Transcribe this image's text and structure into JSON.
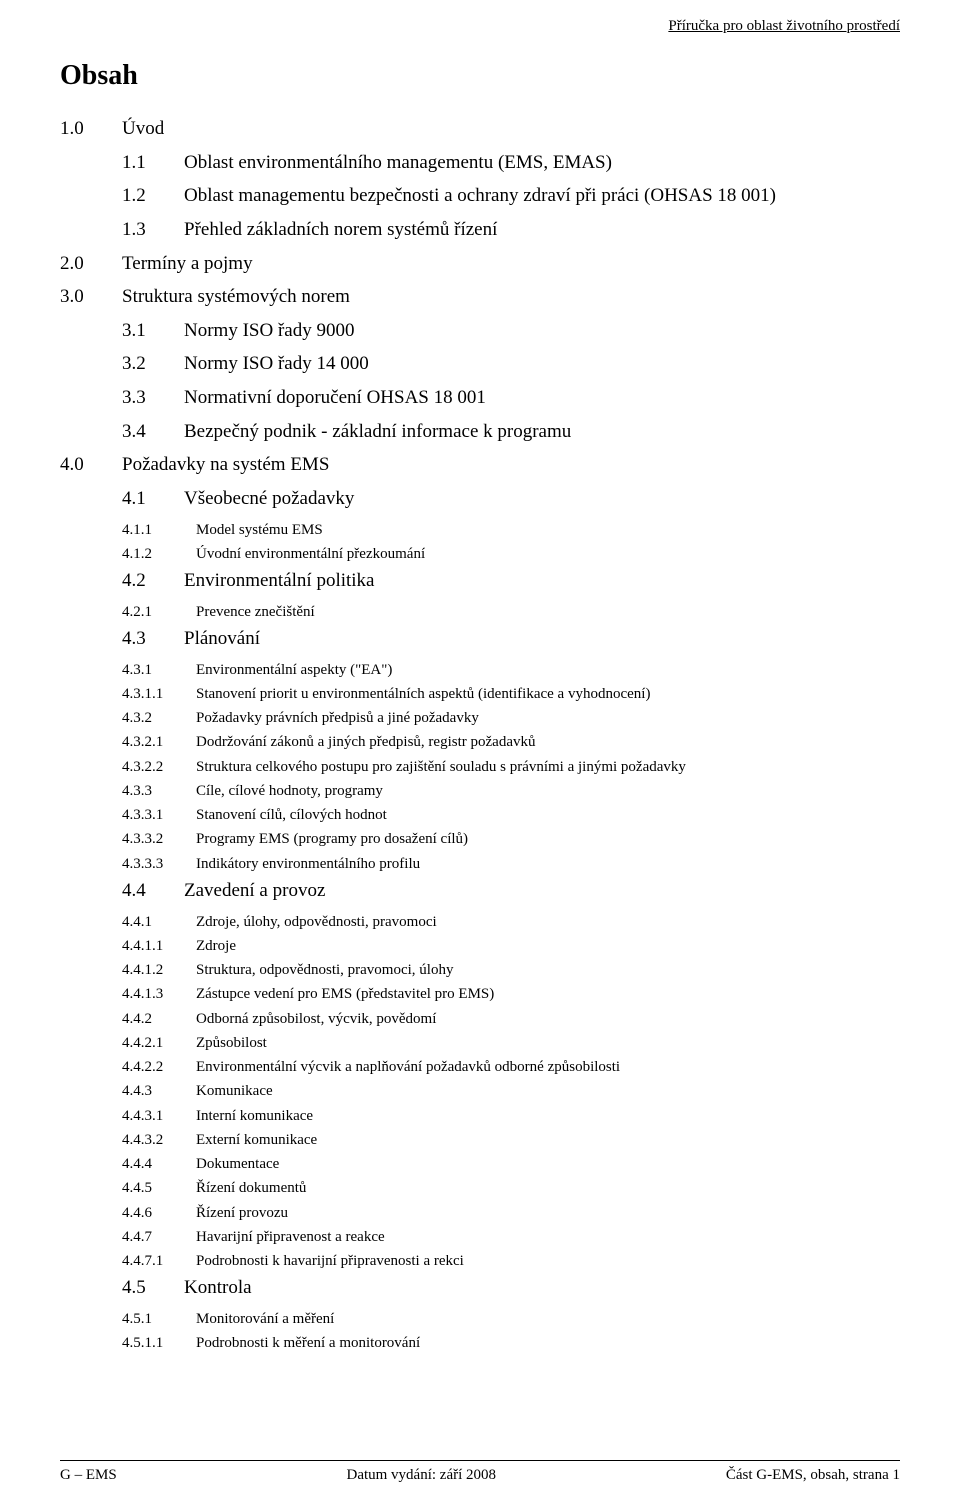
{
  "header_right": "Příručka pro oblast životního prostředí",
  "title": "Obsah",
  "entries": [
    {
      "lvl": 1,
      "num": "1.0",
      "txt": "Úvod"
    },
    {
      "lvl": 2,
      "num": "1.1",
      "txt": "Oblast environmentálního managementu (EMS, EMAS)"
    },
    {
      "lvl": 2,
      "num": "1.2",
      "txt": "Oblast managementu bezpečnosti a ochrany zdraví při práci (OHSAS 18 001)"
    },
    {
      "lvl": 2,
      "num": "1.3",
      "txt": "Přehled základních norem systémů řízení"
    },
    {
      "lvl": 1,
      "num": "2.0",
      "txt": "Termíny a pojmy"
    },
    {
      "lvl": 1,
      "num": "3.0",
      "txt": "Struktura systémových norem"
    },
    {
      "lvl": 2,
      "num": "3.1",
      "txt": "Normy ISO řady 9000"
    },
    {
      "lvl": 2,
      "num": "3.2",
      "txt": "Normy ISO řady 14 000"
    },
    {
      "lvl": 2,
      "num": "3.3",
      "txt": "Normativní doporučení OHSAS 18 001"
    },
    {
      "lvl": 2,
      "num": "3.4",
      "txt": "Bezpečný podnik - základní informace k programu"
    },
    {
      "lvl": 1,
      "num": "4.0",
      "txt": "Požadavky na systém EMS"
    },
    {
      "lvl": 2,
      "num": "4.1",
      "txt": "Všeobecné požadavky"
    },
    {
      "lvl": 3,
      "num": "4.1.1",
      "txt": "Model systému EMS"
    },
    {
      "lvl": 3,
      "num": "4.1.2",
      "txt": "Úvodní environmentální přezkoumání"
    },
    {
      "lvl": 2,
      "num": "4.2",
      "txt": "Environmentální politika"
    },
    {
      "lvl": 3,
      "num": "4.2.1",
      "txt": "Prevence znečištění"
    },
    {
      "lvl": 2,
      "num": "4.3",
      "txt": "Plánování"
    },
    {
      "lvl": 3,
      "num": "4.3.1",
      "txt": "Environmentální aspekty (\"EA\")"
    },
    {
      "lvl": 3,
      "num": "4.3.1.1",
      "txt": "Stanovení priorit u environmentálních aspektů (identifikace a vyhodnocení)"
    },
    {
      "lvl": 3,
      "num": "4.3.2",
      "txt": "Požadavky právních předpisů a jiné požadavky"
    },
    {
      "lvl": 3,
      "num": "4.3.2.1",
      "txt": "Dodržování zákonů a jiných předpisů, registr požadavků"
    },
    {
      "lvl": 3,
      "num": "4.3.2.2",
      "txt": "Struktura celkového postupu pro zajištění souladu s právními a jinými požadavky"
    },
    {
      "lvl": 3,
      "num": "4.3.3",
      "txt": "Cíle, cílové hodnoty, programy"
    },
    {
      "lvl": 3,
      "num": "4.3.3.1",
      "txt": "Stanovení cílů, cílových hodnot"
    },
    {
      "lvl": 3,
      "num": "4.3.3.2",
      "txt": "Programy EMS (programy pro dosažení cílů)"
    },
    {
      "lvl": 3,
      "num": "4.3.3.3",
      "txt": "Indikátory environmentálního profilu"
    },
    {
      "lvl": 2,
      "num": "4.4",
      "txt": "Zavedení a provoz"
    },
    {
      "lvl": 3,
      "num": "4.4.1",
      "txt": "Zdroje, úlohy, odpovědnosti, pravomoci"
    },
    {
      "lvl": 3,
      "num": "4.4.1.1",
      "txt": "Zdroje"
    },
    {
      "lvl": 3,
      "num": "4.4.1.2",
      "txt": "Struktura, odpovědnosti, pravomoci, úlohy"
    },
    {
      "lvl": 3,
      "num": "4.4.1.3",
      "txt": "Zástupce vedení pro EMS (představitel pro EMS)"
    },
    {
      "lvl": 3,
      "num": "4.4.2",
      "txt": "Odborná způsobilost, výcvik, povědomí"
    },
    {
      "lvl": 3,
      "num": "4.4.2.1",
      "txt": "Způsobilost"
    },
    {
      "lvl": 3,
      "num": "4.4.2.2",
      "txt": "Environmentální výcvik a naplňování požadavků odborné způsobilosti"
    },
    {
      "lvl": 3,
      "num": "4.4.3",
      "txt": "Komunikace"
    },
    {
      "lvl": 3,
      "num": "4.4.3.1",
      "txt": "Interní komunikace"
    },
    {
      "lvl": 3,
      "num": "4.4.3.2",
      "txt": "Externí komunikace"
    },
    {
      "lvl": 3,
      "num": "4.4.4",
      "txt": "Dokumentace"
    },
    {
      "lvl": 3,
      "num": "4.4.5",
      "txt": "Řízení dokumentů"
    },
    {
      "lvl": 3,
      "num": "4.4.6",
      "txt": "Řízení provozu"
    },
    {
      "lvl": 3,
      "num": "4.4.7",
      "txt": "Havarijní připravenost a reakce"
    },
    {
      "lvl": 3,
      "num": "4.4.7.1",
      "txt": "Podrobnosti k havarijní připravenosti a rekci"
    },
    {
      "lvl": 2,
      "num": "4.5",
      "txt": "Kontrola"
    },
    {
      "lvl": 3,
      "num": "4.5.1",
      "txt": "Monitorování a měření"
    },
    {
      "lvl": 3,
      "num": "4.5.1.1",
      "txt": "Podrobnosti k měření a monitorování"
    }
  ],
  "footer": {
    "left": "G – EMS",
    "center": "Datum vydání: září 2008",
    "right": "Část G-EMS, obsah, strana 1"
  }
}
